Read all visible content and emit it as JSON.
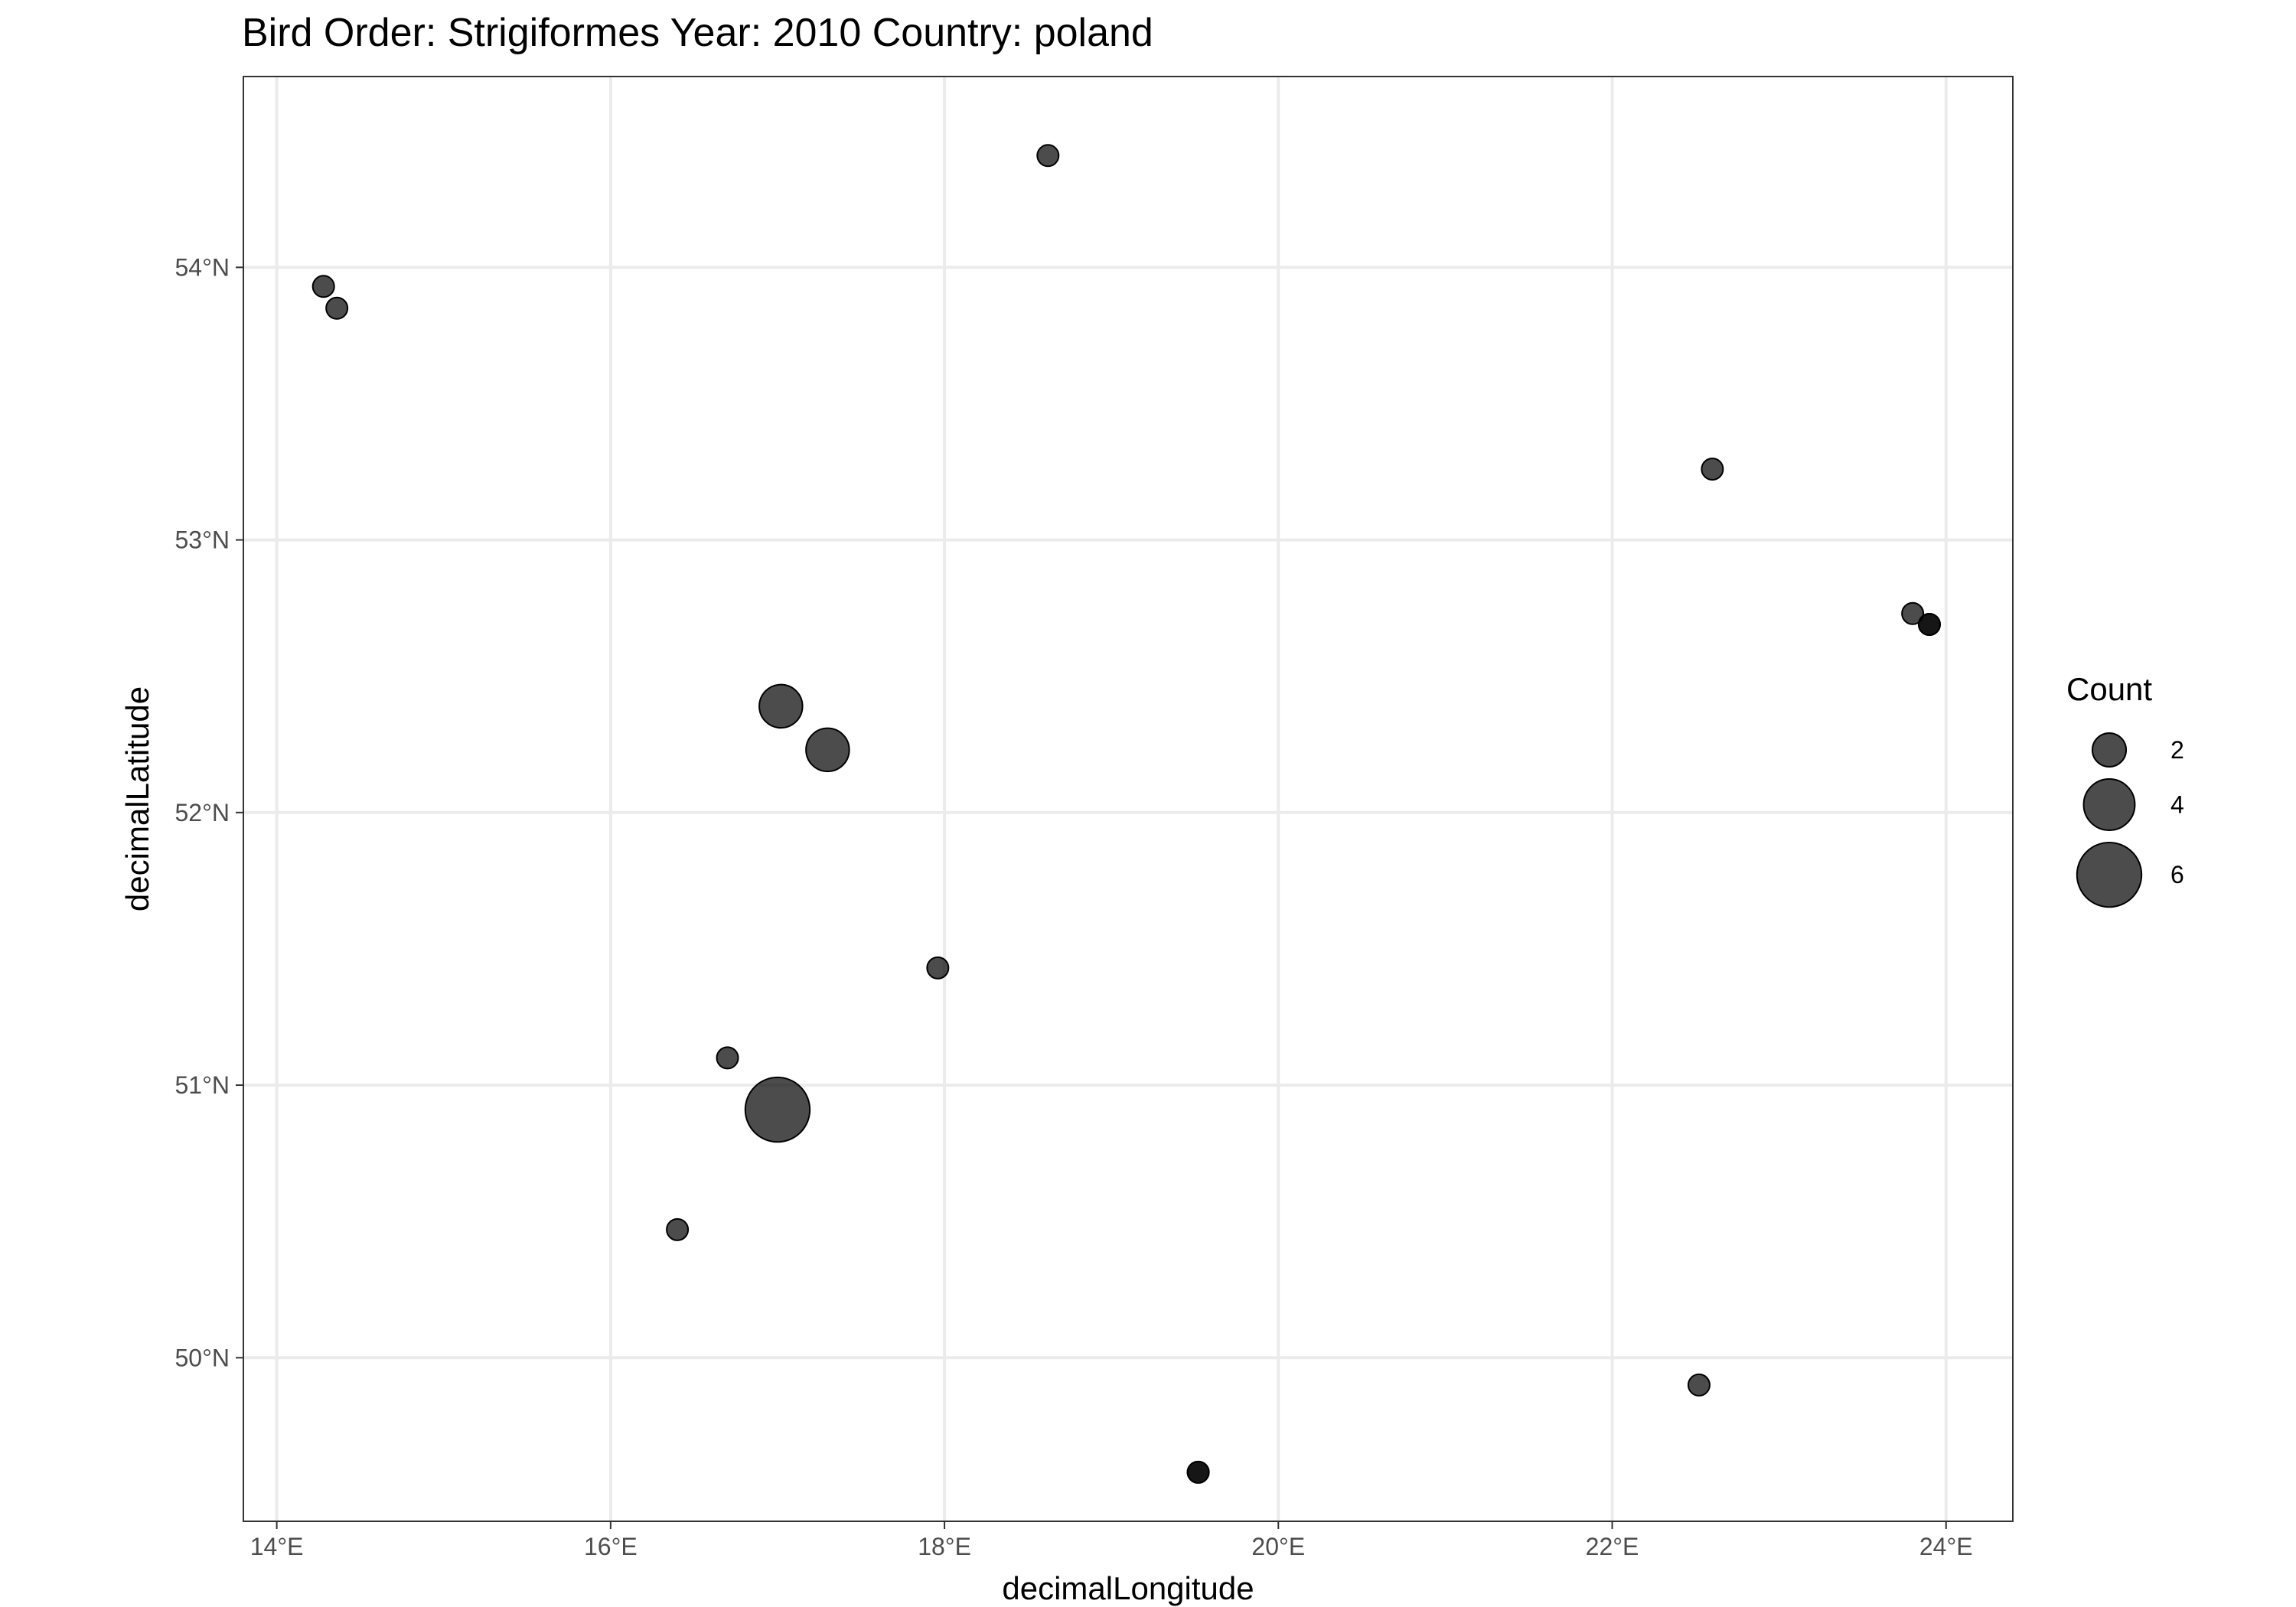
{
  "chart_data": {
    "type": "scatter",
    "title": "Bird Order: Strigiformes Year: 2010 Country: poland",
    "xlabel": "decimalLongitude",
    "ylabel": "decimalLatitude",
    "xlim": [
      13.8,
      24.4
    ],
    "ylim": [
      49.4,
      54.7
    ],
    "x_ticks": [
      {
        "value": 14,
        "label": "14°E"
      },
      {
        "value": 16,
        "label": "16°E"
      },
      {
        "value": 18,
        "label": "18°E"
      },
      {
        "value": 20,
        "label": "20°E"
      },
      {
        "value": 22,
        "label": "22°E"
      },
      {
        "value": 24,
        "label": "24°E"
      }
    ],
    "y_ticks": [
      {
        "value": 50,
        "label": "50°N"
      },
      {
        "value": 51,
        "label": "51°N"
      },
      {
        "value": 52,
        "label": "52°N"
      },
      {
        "value": 53,
        "label": "53°N"
      },
      {
        "value": 54,
        "label": "54°N"
      }
    ],
    "grid": true,
    "point_color": "#000000",
    "point_alpha": 0.7,
    "size_range_count": [
      1,
      7
    ],
    "points": [
      {
        "x": 18.62,
        "y": 54.41,
        "count": 1
      },
      {
        "x": 14.28,
        "y": 53.93,
        "count": 1
      },
      {
        "x": 14.36,
        "y": 53.85,
        "count": 1
      },
      {
        "x": 22.6,
        "y": 53.26,
        "count": 1
      },
      {
        "x": 23.8,
        "y": 52.73,
        "count": 1
      },
      {
        "x": 23.9,
        "y": 52.69,
        "count": 1
      },
      {
        "x": 23.9,
        "y": 52.69,
        "count": 1
      },
      {
        "x": 17.02,
        "y": 52.39,
        "count": 3
      },
      {
        "x": 17.3,
        "y": 52.23,
        "count": 3
      },
      {
        "x": 17.96,
        "y": 51.43,
        "count": 1
      },
      {
        "x": 16.7,
        "y": 51.1,
        "count": 1
      },
      {
        "x": 17.0,
        "y": 50.91,
        "count": 6
      },
      {
        "x": 16.4,
        "y": 50.47,
        "count": 1
      },
      {
        "x": 22.52,
        "y": 49.9,
        "count": 1
      },
      {
        "x": 19.52,
        "y": 49.58,
        "count": 1
      },
      {
        "x": 19.52,
        "y": 49.58,
        "count": 1
      }
    ],
    "legend": {
      "title": "Count",
      "position": "right",
      "entries": [
        {
          "count": 2,
          "label": "2"
        },
        {
          "count": 4,
          "label": "4"
        },
        {
          "count": 6,
          "label": "6"
        }
      ]
    }
  }
}
